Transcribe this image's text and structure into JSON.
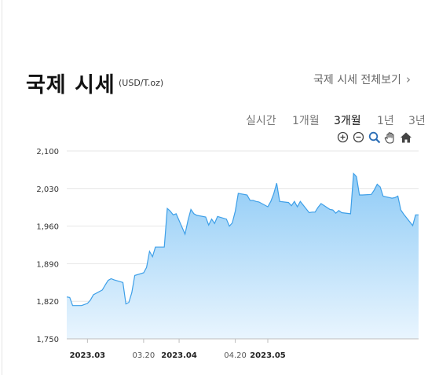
{
  "header": {
    "title": "국제 시세",
    "unit": "(USD/T.oz)",
    "view_all": "국제 시세 전체보기"
  },
  "ranges": [
    {
      "label": "실시간",
      "active": false
    },
    {
      "label": "1개월",
      "active": false
    },
    {
      "label": "3개월",
      "active": true
    },
    {
      "label": "1년",
      "active": false
    },
    {
      "label": "3년",
      "active": false
    }
  ],
  "tools": [
    "zoom-in-icon",
    "zoom-out-icon",
    "zoom-select-icon",
    "pan-hand-icon",
    "home-icon"
  ],
  "colors": {
    "line": "#3d9fe8",
    "fill_top": "#8fcbf6",
    "fill_bottom": "#e9f5fe",
    "grid": "#e6e6e6"
  },
  "chart_data": {
    "type": "area",
    "xlabel": "",
    "ylabel": "",
    "ylim": [
      1750,
      2100
    ],
    "y_ticks": [
      "1,750",
      "1,820",
      "1,890",
      "1,960",
      "2,030",
      "2,100"
    ],
    "x_ticks": [
      {
        "label": "2023.03",
        "date": "2023-03-01",
        "bold": true
      },
      {
        "label": "03.20",
        "date": "2023-03-20",
        "bold": false
      },
      {
        "label": "2023.04",
        "date": "2023-04-01",
        "bold": true
      },
      {
        "label": "04.20",
        "date": "2023-04-20",
        "bold": false
      },
      {
        "label": "2023.05",
        "date": "2023-05-01",
        "bold": true
      }
    ],
    "series": [
      {
        "points": [
          [
            "2023-02-22",
            1828
          ],
          [
            "2023-02-23",
            1827
          ],
          [
            "2023-02-24",
            1812
          ],
          [
            "2023-02-27",
            1812
          ],
          [
            "2023-02-28",
            1814
          ],
          [
            "2023-03-01",
            1816
          ],
          [
            "2023-03-02",
            1822
          ],
          [
            "2023-03-03",
            1832
          ],
          [
            "2023-03-06",
            1841
          ],
          [
            "2023-03-07",
            1850
          ],
          [
            "2023-03-08",
            1859
          ],
          [
            "2023-03-09",
            1862
          ],
          [
            "2023-03-10",
            1860
          ],
          [
            "2023-03-13",
            1855
          ],
          [
            "2023-03-14",
            1815
          ],
          [
            "2023-03-15",
            1818
          ],
          [
            "2023-03-16",
            1836
          ],
          [
            "2023-03-17",
            1868
          ],
          [
            "2023-03-20",
            1873
          ],
          [
            "2023-03-21",
            1883
          ],
          [
            "2023-03-22",
            1913
          ],
          [
            "2023-03-23",
            1903
          ],
          [
            "2023-03-24",
            1921
          ],
          [
            "2023-03-27",
            1921
          ],
          [
            "2023-03-28",
            1993
          ],
          [
            "2023-03-29",
            1988
          ],
          [
            "2023-03-30",
            1981
          ],
          [
            "2023-03-31",
            1983
          ],
          [
            "2023-04-03",
            1945
          ],
          [
            "2023-04-04",
            1971
          ],
          [
            "2023-04-05",
            1991
          ],
          [
            "2023-04-06",
            1983
          ],
          [
            "2023-04-07",
            1980
          ],
          [
            "2023-04-10",
            1977
          ],
          [
            "2023-04-11",
            1962
          ],
          [
            "2023-04-12",
            1973
          ],
          [
            "2023-04-13",
            1965
          ],
          [
            "2023-04-14",
            1978
          ],
          [
            "2023-04-17",
            1973
          ],
          [
            "2023-04-18",
            1960
          ],
          [
            "2023-04-19",
            1966
          ],
          [
            "2023-04-20",
            1988
          ],
          [
            "2023-04-21",
            2021
          ],
          [
            "2023-04-24",
            2018
          ],
          [
            "2023-04-25",
            2008
          ],
          [
            "2023-04-26",
            2008
          ],
          [
            "2023-04-27",
            2006
          ],
          [
            "2023-04-28",
            2005
          ],
          [
            "2023-05-01",
            1996
          ],
          [
            "2023-05-02",
            2006
          ],
          [
            "2023-05-03",
            2020
          ],
          [
            "2023-05-04",
            2040
          ],
          [
            "2023-05-05",
            2006
          ],
          [
            "2023-05-08",
            2004
          ],
          [
            "2023-05-09",
            1998
          ],
          [
            "2023-05-10",
            2006
          ],
          [
            "2023-05-11",
            1996
          ],
          [
            "2023-05-12",
            2006
          ],
          [
            "2023-05-15",
            1985
          ],
          [
            "2023-05-16",
            1986
          ],
          [
            "2023-05-17",
            1986
          ],
          [
            "2023-05-18",
            1995
          ],
          [
            "2023-05-19",
            2002
          ],
          [
            "2023-05-22",
            1991
          ],
          [
            "2023-05-23",
            1990
          ],
          [
            "2023-05-24",
            1984
          ],
          [
            "2023-05-25",
            1989
          ],
          [
            "2023-05-26",
            1985
          ],
          [
            "2023-05-29",
            1983
          ],
          [
            "2023-05-30",
            2058
          ],
          [
            "2023-05-31",
            2052
          ],
          [
            "2023-06-01",
            2018
          ],
          [
            "2023-06-02",
            2018
          ],
          [
            "2023-06-05",
            2019
          ],
          [
            "2023-06-06",
            2027
          ],
          [
            "2023-06-07",
            2038
          ],
          [
            "2023-06-08",
            2033
          ],
          [
            "2023-06-09",
            2016
          ],
          [
            "2023-06-12",
            2012
          ],
          [
            "2023-06-13",
            2013
          ],
          [
            "2023-06-14",
            2016
          ],
          [
            "2023-06-15",
            1990
          ],
          [
            "2023-06-16",
            1982
          ],
          [
            "2023-06-19",
            1961
          ],
          [
            "2023-06-20",
            1981
          ],
          [
            "2023-06-21",
            1981
          ]
        ]
      }
    ]
  }
}
